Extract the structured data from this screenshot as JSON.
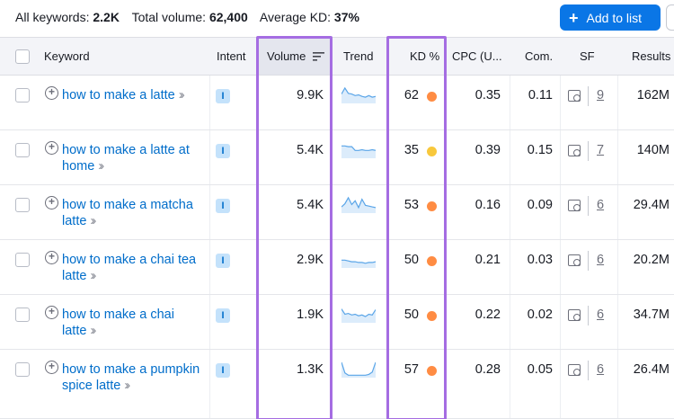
{
  "summary": {
    "keywords_label": "All keywords:",
    "keywords_value": "2.2K",
    "volume_label": "Total volume:",
    "volume_value": "62,400",
    "kd_label": "Average KD:",
    "kd_value": "37%"
  },
  "toolbar": {
    "add_label": "Add to list",
    "add_icon": "plus-icon"
  },
  "columns": {
    "keyword": "Keyword",
    "intent": "Intent",
    "volume": "Volume",
    "trend": "Trend",
    "kd": "KD %",
    "cpc": "CPC (U...",
    "com": "Com.",
    "sf": "SF",
    "results": "Results"
  },
  "colors": {
    "accent": "#0a76e6",
    "highlight": "#a56de2",
    "kd_orange": "#ff8c43",
    "kd_yellow": "#f8c83c"
  },
  "rows": [
    {
      "keyword": "how to make a latte",
      "intent": "I",
      "volume": "9.9K",
      "kd": "62",
      "kd_color": "#ff8c43",
      "cpc": "0.35",
      "com": "0.11",
      "sf": "9",
      "results": "162M",
      "trend": [
        0.55,
        0.95,
        0.6,
        0.55,
        0.45,
        0.5,
        0.4,
        0.35,
        0.45,
        0.35,
        0.4
      ]
    },
    {
      "keyword": "how to make a latte at home",
      "intent": "I",
      "volume": "5.4K",
      "kd": "35",
      "kd_color": "#f8c83c",
      "cpc": "0.39",
      "com": "0.15",
      "sf": "7",
      "results": "140M",
      "trend": [
        0.75,
        0.75,
        0.7,
        0.7,
        0.45,
        0.45,
        0.5,
        0.45,
        0.45,
        0.5,
        0.45
      ]
    },
    {
      "keyword": "how to make a matcha latte",
      "intent": "I",
      "volume": "5.4K",
      "kd": "53",
      "kd_color": "#ff8c43",
      "cpc": "0.16",
      "com": "0.09",
      "sf": "6",
      "results": "29.4M",
      "trend": [
        0.35,
        0.55,
        0.95,
        0.5,
        0.75,
        0.3,
        0.85,
        0.45,
        0.4,
        0.35,
        0.3
      ]
    },
    {
      "keyword": "how to make a chai tea latte",
      "intent": "I",
      "volume": "2.9K",
      "kd": "50",
      "kd_color": "#ff8c43",
      "cpc": "0.21",
      "com": "0.03",
      "sf": "6",
      "results": "20.2M",
      "trend": [
        0.45,
        0.45,
        0.4,
        0.35,
        0.35,
        0.3,
        0.3,
        0.25,
        0.3,
        0.3,
        0.35
      ]
    },
    {
      "keyword": "how to make a chai latte",
      "intent": "I",
      "volume": "1.9K",
      "kd": "50",
      "kd_color": "#ff8c43",
      "cpc": "0.22",
      "com": "0.02",
      "sf": "6",
      "results": "34.7M",
      "trend": [
        0.85,
        0.5,
        0.55,
        0.45,
        0.5,
        0.4,
        0.45,
        0.35,
        0.5,
        0.45,
        0.8
      ]
    },
    {
      "keyword": "how to make a pumpkin spice latte",
      "intent": "I",
      "volume": "1.3K",
      "kd": "57",
      "kd_color": "#ff8c43",
      "cpc": "0.28",
      "com": "0.05",
      "sf": "6",
      "results": "26.4M",
      "trend": [
        0.95,
        0.25,
        0.1,
        0.1,
        0.1,
        0.1,
        0.1,
        0.1,
        0.15,
        0.3,
        0.95
      ]
    }
  ]
}
